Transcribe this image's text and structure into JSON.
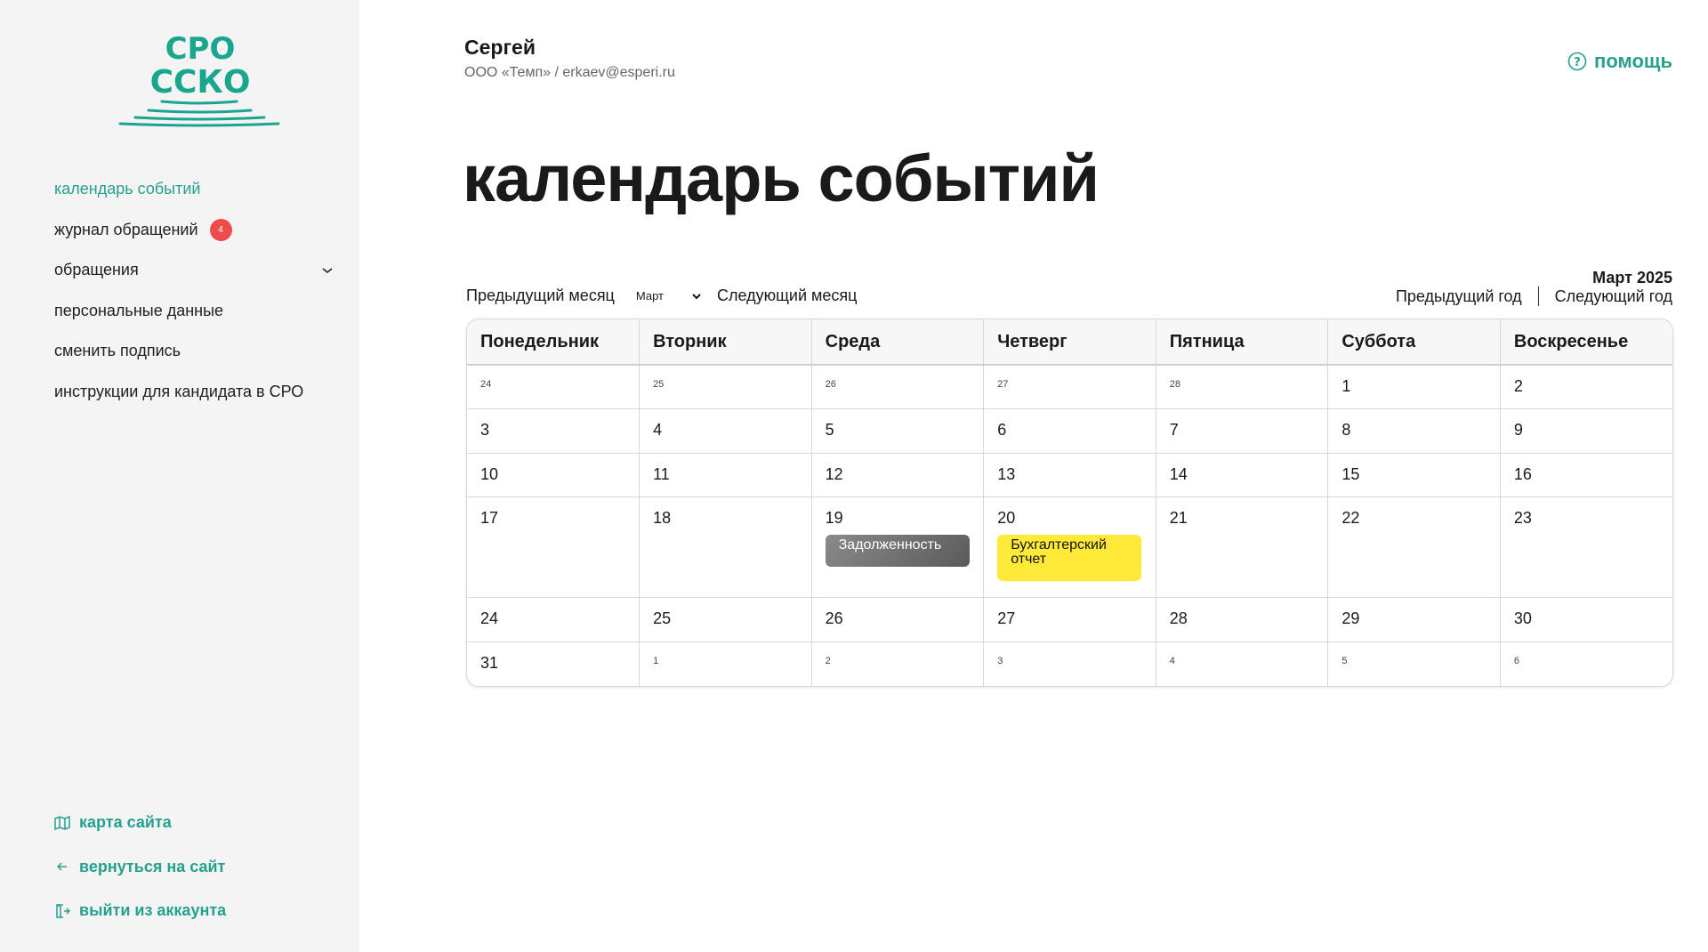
{
  "brand": {
    "logo_text_line1": "СРО",
    "logo_text_line2": "ССКО",
    "color": "#27a08e"
  },
  "sidebar": {
    "items": [
      {
        "label": "календарь событий",
        "active": true
      },
      {
        "label": "журнал обращений",
        "badge": "4"
      },
      {
        "label": "обращения",
        "expandable": true
      },
      {
        "label": "персональные данные"
      },
      {
        "label": "сменить подпись"
      },
      {
        "label": "инструкции для кандидата в СРО"
      }
    ],
    "bottom": [
      {
        "label": "карта сайта",
        "icon": "map-icon"
      },
      {
        "label": "вернуться на сайт",
        "icon": "arrow-left-icon"
      },
      {
        "label": "выйти из аккаунта",
        "icon": "logout-icon"
      }
    ]
  },
  "header": {
    "user_name": "Сергей",
    "user_sub": "ООО «Темп» / erkaev@esperi.ru",
    "help": "помощь"
  },
  "page_title": "календарь событий",
  "controls": {
    "prev_month": "Предыдущий месяц",
    "month_select": "Март",
    "next_month": "Следующий месяц",
    "current": "Март 2025",
    "prev_year": "Предыдущий год",
    "next_year": "Следующий год"
  },
  "calendar": {
    "weekdays": [
      "Понедельник",
      "Вторник",
      "Среда",
      "Четверг",
      "Пятница",
      "Суббота",
      "Воскресенье"
    ],
    "weeks": [
      [
        {
          "d": "24",
          "o": true
        },
        {
          "d": "25",
          "o": true
        },
        {
          "d": "26",
          "o": true
        },
        {
          "d": "27",
          "o": true
        },
        {
          "d": "28",
          "o": true
        },
        {
          "d": "1"
        },
        {
          "d": "2"
        }
      ],
      [
        {
          "d": "3"
        },
        {
          "d": "4"
        },
        {
          "d": "5"
        },
        {
          "d": "6"
        },
        {
          "d": "7"
        },
        {
          "d": "8"
        },
        {
          "d": "9"
        }
      ],
      [
        {
          "d": "10"
        },
        {
          "d": "11"
        },
        {
          "d": "12"
        },
        {
          "d": "13"
        },
        {
          "d": "14"
        },
        {
          "d": "15"
        },
        {
          "d": "16"
        }
      ],
      [
        {
          "d": "17"
        },
        {
          "d": "18"
        },
        {
          "d": "19",
          "event": {
            "label": "Задолженность",
            "color": "grey"
          }
        },
        {
          "d": "20",
          "event": {
            "label": "Бухгалтерский отчет",
            "color": "yellow"
          }
        },
        {
          "d": "21"
        },
        {
          "d": "22"
        },
        {
          "d": "23"
        }
      ],
      [
        {
          "d": "24"
        },
        {
          "d": "25"
        },
        {
          "d": "26"
        },
        {
          "d": "27"
        },
        {
          "d": "28"
        },
        {
          "d": "29"
        },
        {
          "d": "30"
        }
      ],
      [
        {
          "d": "31"
        },
        {
          "d": "1",
          "o": true
        },
        {
          "d": "2",
          "o": true
        },
        {
          "d": "3",
          "o": true
        },
        {
          "d": "4",
          "o": true
        },
        {
          "d": "5",
          "o": true
        },
        {
          "d": "6",
          "o": true
        }
      ]
    ]
  }
}
